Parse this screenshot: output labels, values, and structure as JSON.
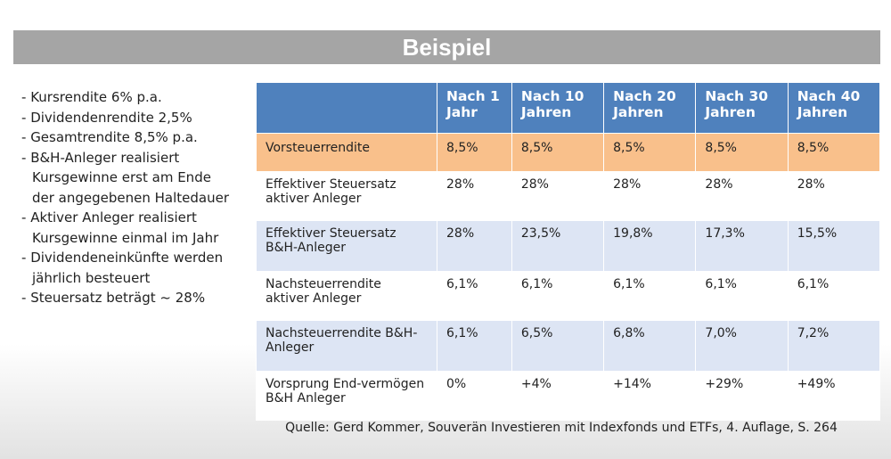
{
  "title": "Beispiel",
  "bullets": [
    "Kursrendite 6% p.a.",
    "Dividendenrendite 2,5%",
    "Gesamtrendite 8,5% p.a.",
    "B&H-Anleger realisiert Kursgewinne erst am Ende der angegebenen Haltedauer",
    "Aktiver Anleger realisiert Kursgewinne einmal im Jahr",
    "Dividendeneinkünfte werden jährlich besteuert",
    "Steuersatz beträgt ~ 28%"
  ],
  "table": {
    "header": [
      "Nach 1 Jahr",
      "Nach 10 Jahren",
      "Nach 20 Jahren",
      "Nach 30 Jahren",
      "Nach 40 Jahren"
    ],
    "rows": [
      [
        "Vorsteuerrendite",
        "8,5%",
        "8,5%",
        "8,5%",
        "8,5%",
        "8,5%"
      ],
      [
        "Effektiver Steuersatz aktiver Anleger",
        "28%",
        "28%",
        "28%",
        "28%",
        "28%"
      ],
      [
        "Effektiver Steuersatz B&H-Anleger",
        "28%",
        "23,5%",
        "19,8%",
        "17,3%",
        "15,5%"
      ],
      [
        "Nachsteuerrendite aktiver Anleger",
        "6,1%",
        "6,1%",
        "6,1%",
        "6,1%",
        "6,1%"
      ],
      [
        "Nachsteuerrendite B&H-Anleger",
        "6,1%",
        "6,5%",
        "6,8%",
        "7,0%",
        "7,2%"
      ],
      [
        "Vorsprung End-vermögen B&H Anleger",
        "0%",
        "+4%",
        "+14%",
        "+29%",
        "+49%"
      ]
    ]
  },
  "source": "Quelle: Gerd Kommer, Souverän Investieren mit Indexfonds und ETFs, 4. Auflage, S. 264"
}
